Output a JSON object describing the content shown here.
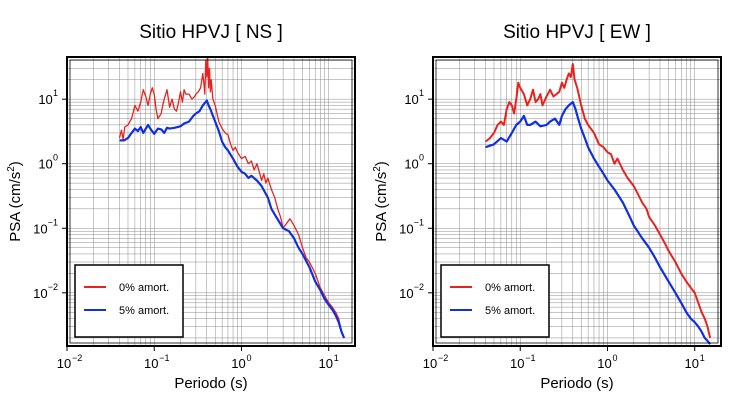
{
  "chart_data": [
    {
      "type": "line",
      "title": "Sitio HPVJ [ NS ]",
      "xlabel": "Periodo (s)",
      "ylabel": "PSA (cm/s²)",
      "xscale": "log",
      "yscale": "log",
      "xlim": [
        0.01,
        20
      ],
      "ylim": [
        0.0015,
        45
      ],
      "grid": true,
      "legend_position": "bottom-left",
      "xticks": [
        {
          "value": 0.01,
          "label": "10",
          "exp": "−2"
        },
        {
          "value": 0.1,
          "label": "10",
          "exp": "−1"
        },
        {
          "value": 1,
          "label": "10",
          "exp": "0"
        },
        {
          "value": 10,
          "label": "10",
          "exp": "1"
        }
      ],
      "yticks": [
        {
          "value": 0.01,
          "label": "10",
          "exp": "−2"
        },
        {
          "value": 0.1,
          "label": "10",
          "exp": "−1"
        },
        {
          "value": 1,
          "label": "10",
          "exp": "0"
        },
        {
          "value": 10,
          "label": "10",
          "exp": "1"
        }
      ],
      "series": [
        {
          "name": "0% amort.",
          "color": "#e8231f",
          "width": 1.3,
          "x": [
            0.04,
            0.042,
            0.044,
            0.046,
            0.05,
            0.055,
            0.06,
            0.065,
            0.07,
            0.075,
            0.08,
            0.085,
            0.09,
            0.095,
            0.1,
            0.105,
            0.11,
            0.12,
            0.125,
            0.13,
            0.14,
            0.15,
            0.16,
            0.17,
            0.18,
            0.19,
            0.2,
            0.21,
            0.22,
            0.23,
            0.25,
            0.27,
            0.29,
            0.3,
            0.32,
            0.34,
            0.36,
            0.37,
            0.38,
            0.39,
            0.4,
            0.41,
            0.42,
            0.43,
            0.44,
            0.45,
            0.47,
            0.5,
            0.55,
            0.6,
            0.65,
            0.7,
            0.75,
            0.8,
            0.85,
            0.9,
            1.0,
            1.1,
            1.2,
            1.3,
            1.4,
            1.5,
            1.6,
            1.7,
            1.8,
            1.9,
            2.0,
            2.2,
            2.4,
            2.6,
            2.8,
            3.0,
            3.3,
            3.6,
            4.0,
            4.5,
            5.0,
            5.5,
            6.0,
            7.0,
            8.0,
            9.0,
            10.0,
            11.0,
            12.0,
            13.0,
            14.0,
            15.0
          ],
          "y": [
            2.5,
            3.3,
            2.4,
            3.7,
            4.0,
            5.0,
            8.0,
            6.5,
            9.0,
            14.0,
            11.0,
            8.0,
            12.0,
            15.0,
            12.0,
            7.0,
            5.0,
            6.0,
            8.0,
            10.0,
            14.0,
            7.5,
            10.0,
            7.0,
            6.5,
            9.0,
            13.0,
            9.0,
            14.0,
            12.0,
            12.0,
            10.0,
            11.0,
            12.0,
            13.0,
            15.0,
            25.0,
            18.0,
            12.0,
            40.0,
            22.0,
            45.0,
            15.0,
            30.0,
            13.0,
            20.0,
            10.0,
            8.0,
            4.5,
            3.5,
            3.0,
            2.8,
            2.0,
            1.6,
            1.8,
            1.5,
            1.2,
            1.3,
            1.0,
            1.1,
            0.8,
            1.0,
            0.75,
            0.55,
            0.7,
            0.5,
            0.6,
            0.4,
            0.3,
            0.2,
            0.15,
            0.1,
            0.12,
            0.14,
            0.11,
            0.08,
            0.05,
            0.035,
            0.03,
            0.02,
            0.012,
            0.009,
            0.007,
            0.006,
            0.005,
            0.004,
            0.0025,
            0.002
          ]
        },
        {
          "name": "5% amort.",
          "color": "#1030e0",
          "width": 2.2,
          "x": [
            0.04,
            0.045,
            0.05,
            0.055,
            0.06,
            0.065,
            0.07,
            0.075,
            0.08,
            0.085,
            0.09,
            0.1,
            0.11,
            0.12,
            0.13,
            0.14,
            0.15,
            0.17,
            0.2,
            0.22,
            0.25,
            0.28,
            0.3,
            0.33,
            0.36,
            0.4,
            0.42,
            0.44,
            0.47,
            0.5,
            0.55,
            0.6,
            0.65,
            0.7,
            0.8,
            0.9,
            1.0,
            1.1,
            1.2,
            1.3,
            1.5,
            1.7,
            2.0,
            2.2,
            2.5,
            3.0,
            3.5,
            4.0,
            4.5,
            5.0,
            6.0,
            7.0,
            8.0,
            9.0,
            10.0,
            11.0,
            12.0,
            13.0,
            14.0,
            15.0
          ],
          "y": [
            2.3,
            2.3,
            2.5,
            3.0,
            3.5,
            3.2,
            3.7,
            3.0,
            3.5,
            4.0,
            3.5,
            2.9,
            3.5,
            3.4,
            3.0,
            3.6,
            3.5,
            3.6,
            3.8,
            4.2,
            4.5,
            5.5,
            6.0,
            6.5,
            8.0,
            9.5,
            8.0,
            7.0,
            5.5,
            4.5,
            3.2,
            2.2,
            1.8,
            1.6,
            1.2,
            0.9,
            0.75,
            0.7,
            0.6,
            0.65,
            0.55,
            0.45,
            0.3,
            0.2,
            0.15,
            0.1,
            0.09,
            0.07,
            0.05,
            0.04,
            0.025,
            0.015,
            0.011,
            0.008,
            0.0065,
            0.0055,
            0.0045,
            0.0035,
            0.0025,
            0.002
          ]
        }
      ]
    },
    {
      "type": "line",
      "title": "Sitio HPVJ [ EW ]",
      "xlabel": "Periodo (s)",
      "ylabel": "PSA (cm/s²)",
      "xscale": "log",
      "yscale": "log",
      "xlim": [
        0.01,
        20
      ],
      "ylim": [
        0.0015,
        45
      ],
      "grid": true,
      "legend_position": "bottom-left",
      "xticks": [
        {
          "value": 0.01,
          "label": "10",
          "exp": "−2"
        },
        {
          "value": 0.1,
          "label": "10",
          "exp": "−1"
        },
        {
          "value": 1,
          "label": "10",
          "exp": "0"
        },
        {
          "value": 10,
          "label": "10",
          "exp": "1"
        }
      ],
      "yticks": [
        {
          "value": 0.01,
          "label": "10",
          "exp": "−2"
        },
        {
          "value": 0.1,
          "label": "10",
          "exp": "−1"
        },
        {
          "value": 1,
          "label": "10",
          "exp": "0"
        },
        {
          "value": 10,
          "label": "10",
          "exp": "1"
        }
      ],
      "series": [
        {
          "name": "0% amort.",
          "color": "#e8231f",
          "width": 2.0,
          "x": [
            0.04,
            0.045,
            0.05,
            0.055,
            0.06,
            0.065,
            0.07,
            0.075,
            0.08,
            0.085,
            0.09,
            0.095,
            0.1,
            0.11,
            0.12,
            0.13,
            0.14,
            0.15,
            0.16,
            0.17,
            0.18,
            0.2,
            0.22,
            0.24,
            0.26,
            0.28,
            0.3,
            0.32,
            0.34,
            0.36,
            0.38,
            0.4,
            0.42,
            0.45,
            0.5,
            0.55,
            0.6,
            0.7,
            0.8,
            0.9,
            1.0,
            1.1,
            1.2,
            1.3,
            1.5,
            1.7,
            2.0,
            2.2,
            2.5,
            2.8,
            3.0,
            3.5,
            4.0,
            4.5,
            5.0,
            6.0,
            7.0,
            8.0,
            9.0,
            10.0,
            11.0,
            12.0,
            13.0,
            14.0,
            15.0
          ],
          "y": [
            2.2,
            2.5,
            3.0,
            4.0,
            4.5,
            4.0,
            7.0,
            9.0,
            8.0,
            6.0,
            10.0,
            18.0,
            15.0,
            12.0,
            8.0,
            10.0,
            14.0,
            9.0,
            10.0,
            12.0,
            8.0,
            11.0,
            14.0,
            11.0,
            12.0,
            13.0,
            18.0,
            15.0,
            20.0,
            25.0,
            22.0,
            35.0,
            20.0,
            15.0,
            8.0,
            5.0,
            4.0,
            3.0,
            2.0,
            1.8,
            1.5,
            1.4,
            1.0,
            1.2,
            0.8,
            0.6,
            0.45,
            0.35,
            0.25,
            0.2,
            0.15,
            0.11,
            0.08,
            0.06,
            0.045,
            0.03,
            0.02,
            0.015,
            0.012,
            0.01,
            0.007,
            0.005,
            0.004,
            0.003,
            0.002
          ]
        },
        {
          "name": "5% amort.",
          "color": "#1030e0",
          "width": 2.2,
          "x": [
            0.04,
            0.05,
            0.06,
            0.07,
            0.08,
            0.09,
            0.1,
            0.11,
            0.12,
            0.13,
            0.15,
            0.17,
            0.2,
            0.22,
            0.25,
            0.28,
            0.3,
            0.33,
            0.36,
            0.4,
            0.43,
            0.46,
            0.5,
            0.55,
            0.6,
            0.7,
            0.8,
            0.9,
            1.0,
            1.2,
            1.5,
            1.8,
            2.0,
            2.5,
            3.0,
            3.5,
            4.0,
            5.0,
            6.0,
            7.0,
            8.0,
            9.0,
            10.0,
            11.0,
            12.0,
            13.0,
            14.0,
            15.0
          ],
          "y": [
            1.8,
            2.0,
            2.5,
            2.2,
            3.0,
            4.0,
            4.5,
            5.5,
            4.0,
            4.0,
            4.5,
            3.8,
            4.0,
            4.5,
            5.0,
            4.0,
            5.5,
            7.0,
            8.0,
            9.0,
            7.0,
            5.0,
            3.5,
            2.5,
            1.8,
            1.2,
            0.9,
            0.7,
            0.55,
            0.4,
            0.25,
            0.15,
            0.11,
            0.07,
            0.05,
            0.035,
            0.025,
            0.015,
            0.01,
            0.007,
            0.005,
            0.004,
            0.0035,
            0.003,
            0.0025,
            0.002,
            0.0018,
            0.0016
          ]
        }
      ]
    }
  ]
}
